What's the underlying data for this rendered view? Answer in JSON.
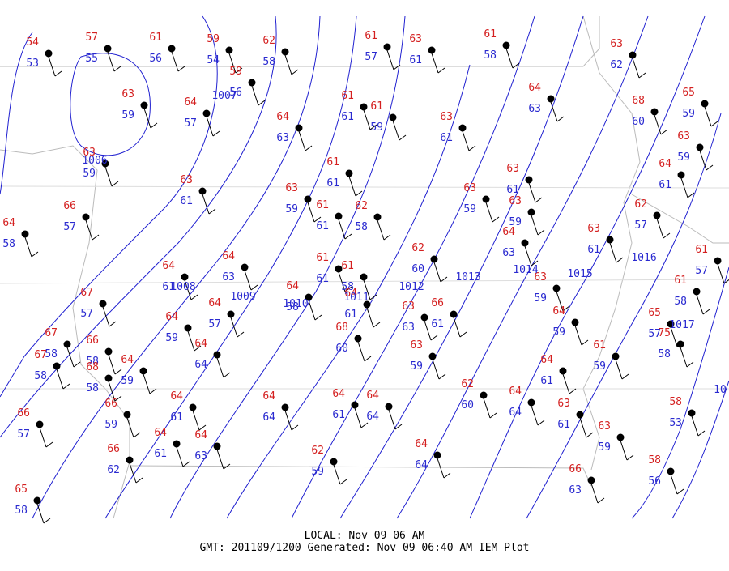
{
  "stations": [
    {
      "temp": 54,
      "dew": 53
    },
    {
      "temp": 57,
      "dew": 55
    },
    {
      "temp": 61,
      "dew": 56
    },
    {
      "temp": 59,
      "dew": 54
    },
    {
      "temp": 62,
      "dew": 58
    },
    {
      "temp": 61,
      "dew": 57
    },
    {
      "temp": 63,
      "dew": 61
    },
    {
      "temp": 61,
      "dew": 58
    },
    {
      "temp": 63,
      "dew": 62
    },
    {
      "temp": 59,
      "dew": 56
    },
    {
      "temp": 63,
      "dew": 59
    },
    {
      "temp": 64,
      "dew": 57
    },
    {
      "temp": 61,
      "dew": 61
    },
    {
      "temp": 61,
      "dew": 59
    },
    {
      "temp": 64,
      "dew": 63
    },
    {
      "temp": 68,
      "dew": 60
    },
    {
      "temp": 65,
      "dew": 59
    },
    {
      "temp": 64,
      "dew": 63
    },
    {
      "temp": 63,
      "dew": 61
    },
    {
      "temp": 63,
      "dew": 59
    },
    {
      "temp": 63,
      "dew": 59
    },
    {
      "temp": 61,
      "dew": 61
    },
    {
      "temp": 64,
      "dew": 61
    },
    {
      "temp": 63,
      "dew": 61
    },
    {
      "temp": 63,
      "dew": 59
    },
    {
      "temp": 63,
      "dew": 61
    },
    {
      "temp": 63,
      "dew": 59
    },
    {
      "temp": 63,
      "dew": 59
    },
    {
      "temp": 66,
      "dew": 57
    },
    {
      "temp": 61,
      "dew": 61
    },
    {
      "temp": 62,
      "dew": 58
    },
    {
      "temp": 62,
      "dew": 57
    },
    {
      "temp": 64,
      "dew": 58
    },
    {
      "temp": 64,
      "dew": 63
    },
    {
      "temp": 63,
      "dew": 61
    },
    {
      "temp": 62,
      "dew": 60
    },
    {
      "temp": 61,
      "dew": 57
    },
    {
      "temp": 64,
      "dew": 61
    },
    {
      "temp": 64,
      "dew": 63
    },
    {
      "temp": 61,
      "dew": 61
    },
    {
      "temp": 61,
      "dew": 58
    },
    {
      "temp": 63,
      "dew": 59
    },
    {
      "temp": 61,
      "dew": 58
    },
    {
      "temp": 64,
      "dew": 58
    },
    {
      "temp": 67,
      "dew": 57
    },
    {
      "temp": 64,
      "dew": 57
    },
    {
      "temp": 64,
      "dew": 61
    },
    {
      "temp": 63,
      "dew": 63
    },
    {
      "temp": 66,
      "dew": 61
    },
    {
      "temp": 64,
      "dew": 59
    },
    {
      "temp": 64,
      "dew": 59
    },
    {
      "temp": 65,
      "dew": 57
    },
    {
      "temp": 68,
      "dew": 60
    },
    {
      "temp": 63,
      "dew": 59
    },
    {
      "temp": 67,
      "dew": 58
    },
    {
      "temp": 66,
      "dew": 58
    },
    {
      "temp": 64,
      "dew": 64
    },
    {
      "temp": 61,
      "dew": 59
    },
    {
      "temp": 75,
      "dew": 58
    },
    {
      "temp": 67,
      "dew": 58
    },
    {
      "temp": 68,
      "dew": 58
    },
    {
      "temp": 64,
      "dew": 59
    },
    {
      "temp": 64,
      "dew": 61
    },
    {
      "temp": 62,
      "dew": 60
    },
    {
      "temp": 64,
      "dew": 61
    },
    {
      "temp": 64,
      "dew": 64
    },
    {
      "temp": 64,
      "dew": 61
    },
    {
      "temp": 64,
      "dew": 64
    },
    {
      "temp": 64,
      "dew": 64
    },
    {
      "temp": 63,
      "dew": 61
    },
    {
      "temp": 58,
      "dew": 53
    },
    {
      "temp": 66,
      "dew": 59
    },
    {
      "temp": 66,
      "dew": 57
    },
    {
      "temp": 64,
      "dew": 61
    },
    {
      "temp": 64,
      "dew": 63
    },
    {
      "temp": 63,
      "dew": 59
    },
    {
      "temp": 66,
      "dew": 62
    },
    {
      "temp": 62,
      "dew": 59
    },
    {
      "temp": 64,
      "dew": 64
    },
    {
      "temp": 58,
      "dew": 56
    },
    {
      "temp": 66,
      "dew": 63
    },
    {
      "temp": 65,
      "dew": 58
    }
  ],
  "isobars": [
    1006,
    1007,
    1008,
    1009,
    1010,
    1011,
    1012,
    1013,
    1014,
    1015,
    1016,
    1017,
    10
  ],
  "footer": {
    "local": "LOCAL: Nov 09 06 AM",
    "gmt": "GMT: 201109/1200 Generated: Nov 09 06:40 AM IEM Plot"
  }
}
